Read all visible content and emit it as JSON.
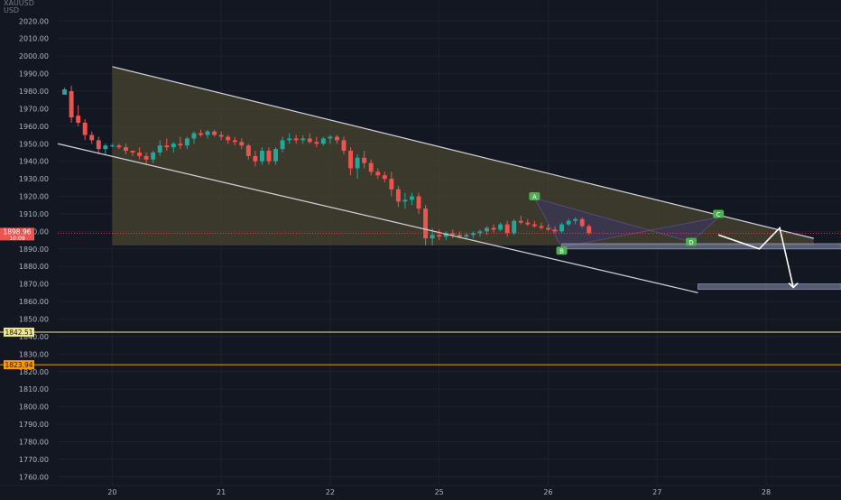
{
  "header": {
    "symbol_label": "XAUUSD",
    "currency": "USD"
  },
  "colors": {
    "background": "#131722",
    "grid": "#1e222d",
    "up": "#26a69a",
    "down": "#ef5350",
    "trendline": "#d1d4dc",
    "wedge_fill": "#4a4530",
    "triangle_fill": "#3a3458",
    "support_zone": "#8c93b3",
    "level_1842": "#f0e68c",
    "level_1823": "#ff9800",
    "axis_text": "#b2b5be"
  },
  "chart_data": {
    "type": "candlestick",
    "y_axis": {
      "ticks": [
        1760,
        1770,
        1780,
        1790,
        1800,
        1810,
        1820,
        1830,
        1840,
        1850,
        1860,
        1870,
        1880,
        1890,
        1900,
        1910,
        1920,
        1930,
        1940,
        1950,
        1960,
        1970,
        1980,
        1990,
        2000,
        2010,
        2020
      ],
      "range": [
        1755,
        2032
      ],
      "position": "left"
    },
    "x_axis": {
      "labels": [
        {
          "label": "20",
          "t": 7
        },
        {
          "label": "21",
          "t": 23
        },
        {
          "label": "22",
          "t": 39
        },
        {
          "label": "25",
          "t": 55
        },
        {
          "label": "26",
          "t": 71
        },
        {
          "label": "27",
          "t": 87
        },
        {
          "label": "28",
          "t": 103
        }
      ],
      "range": [
        -1,
        114
      ]
    },
    "candles": [
      [
        1978,
        1982,
        1978,
        1981
      ],
      [
        1980,
        1983,
        1962,
        1965
      ],
      [
        1966,
        1972,
        1960,
        1962
      ],
      [
        1962,
        1964,
        1952,
        1955
      ],
      [
        1955,
        1957,
        1950,
        1952
      ],
      [
        1952,
        1954,
        1944,
        1947
      ],
      [
        1947,
        1950,
        1944,
        1949
      ],
      [
        1949,
        1950,
        1948,
        1949
      ],
      [
        1949,
        1950,
        1947,
        1948
      ],
      [
        1948,
        1950,
        1944,
        1946
      ],
      [
        1946,
        1946,
        1943,
        1945
      ],
      [
        1945,
        1948,
        1941,
        1943
      ],
      [
        1943,
        1945,
        1938,
        1941
      ],
      [
        1941,
        1946,
        1939,
        1945
      ],
      [
        1945,
        1952,
        1943,
        1949
      ],
      [
        1949,
        1953,
        1946,
        1948
      ],
      [
        1948,
        1951,
        1945,
        1950
      ],
      [
        1950,
        1954,
        1947,
        1949
      ],
      [
        1949,
        1954,
        1947,
        1953
      ],
      [
        1953,
        1957,
        1950,
        1956
      ],
      [
        1956,
        1958,
        1954,
        1955
      ],
      [
        1955,
        1958,
        1953,
        1957
      ],
      [
        1957,
        1958,
        1954,
        1955
      ],
      [
        1955,
        1957,
        1952,
        1954
      ],
      [
        1954,
        1955,
        1950,
        1952
      ],
      [
        1952,
        1954,
        1949,
        1951
      ],
      [
        1951,
        1953,
        1947,
        1949
      ],
      [
        1949,
        1950,
        1941,
        1943
      ],
      [
        1943,
        1946,
        1937,
        1940
      ],
      [
        1940,
        1948,
        1938,
        1946
      ],
      [
        1946,
        1948,
        1938,
        1940
      ],
      [
        1940,
        1948,
        1938,
        1947
      ],
      [
        1947,
        1954,
        1945,
        1952
      ],
      [
        1952,
        1956,
        1950,
        1953
      ],
      [
        1953,
        1955,
        1950,
        1952
      ],
      [
        1952,
        1955,
        1950,
        1953
      ],
      [
        1953,
        1956,
        1950,
        1951
      ],
      [
        1951,
        1954,
        1948,
        1950
      ],
      [
        1950,
        1954,
        1949,
        1953
      ],
      [
        1953,
        1955,
        1950,
        1954
      ],
      [
        1954,
        1955,
        1950,
        1952
      ],
      [
        1952,
        1954,
        1944,
        1946
      ],
      [
        1946,
        1948,
        1932,
        1936
      ],
      [
        1936,
        1944,
        1930,
        1942
      ],
      [
        1942,
        1946,
        1936,
        1939
      ],
      [
        1939,
        1941,
        1932,
        1934
      ],
      [
        1934,
        1936,
        1930,
        1932
      ],
      [
        1932,
        1934,
        1928,
        1930
      ],
      [
        1930,
        1934,
        1920,
        1924
      ],
      [
        1924,
        1926,
        1914,
        1917
      ],
      [
        1917,
        1922,
        1913,
        1918
      ],
      [
        1918,
        1922,
        1915,
        1920
      ],
      [
        1920,
        1922,
        1910,
        1913
      ],
      [
        1913,
        1915,
        1892,
        1896
      ],
      [
        1896,
        1902,
        1892,
        1898
      ],
      [
        1898,
        1901,
        1895,
        1897
      ],
      [
        1897,
        1900,
        1895,
        1899
      ],
      [
        1899,
        1901,
        1896,
        1898
      ],
      [
        1898,
        1900,
        1896,
        1897
      ],
      [
        1897,
        1899,
        1896,
        1898
      ],
      [
        1898,
        1900,
        1896,
        1899
      ],
      [
        1899,
        1901,
        1897,
        1900
      ],
      [
        1900,
        1903,
        1898,
        1902
      ],
      [
        1902,
        1904,
        1899,
        1901
      ],
      [
        1901,
        1905,
        1900,
        1904
      ],
      [
        1904,
        1906,
        1897,
        1899
      ],
      [
        1899,
        1907,
        1898,
        1906
      ],
      [
        1906,
        1909,
        1904,
        1905
      ],
      [
        1905,
        1907,
        1903,
        1904
      ],
      [
        1904,
        1906,
        1902,
        1903
      ],
      [
        1903,
        1905,
        1901,
        1902
      ],
      [
        1902,
        1904,
        1900,
        1901
      ],
      [
        1901,
        1903,
        1899,
        1900
      ],
      [
        1900,
        1905,
        1899,
        1904
      ],
      [
        1904,
        1907,
        1903,
        1906
      ],
      [
        1906,
        1908,
        1904,
        1907
      ],
      [
        1907,
        1908,
        1902,
        1903
      ],
      [
        1903,
        1904,
        1898,
        1899
      ]
    ],
    "last_price_label": "1898.96",
    "last_price_value": 1898.96,
    "countdown_label": "10:09",
    "horizontal_levels": [
      {
        "label": "1842.51",
        "value": 1842.51,
        "color": "#f0e68c"
      },
      {
        "label": "1823.94",
        "value": 1823.94,
        "color": "#ff9800"
      }
    ],
    "wedge": {
      "upper": [
        [
          7,
          1994
        ],
        [
          110,
          1896
        ]
      ],
      "lower": [
        [
          -1,
          1950
        ],
        [
          93,
          1865
        ]
      ],
      "fill_polygon": [
        [
          7,
          1994
        ],
        [
          110,
          1896
        ],
        [
          110,
          1892
        ],
        [
          7,
          1892
        ]
      ]
    },
    "triangle_pattern": {
      "points": [
        [
          69,
          1919
        ],
        [
          73,
          1891
        ],
        [
          96,
          1908
        ],
        [
          92,
          1894
        ]
      ],
      "labels": [
        {
          "text": "A",
          "t": 69,
          "v": 1920
        },
        {
          "text": "B",
          "t": 73,
          "v": 1889
        },
        {
          "text": "C",
          "t": 96,
          "v": 1910
        },
        {
          "text": "D",
          "t": 92,
          "v": 1894
        }
      ]
    },
    "zones": [
      {
        "t": [
          73,
          114
        ],
        "v": [
          1890,
          1893
        ]
      },
      {
        "t": [
          93,
          114
        ],
        "v": [
          1867,
          1870
        ]
      }
    ],
    "projection_path": [
      [
        96,
        1898
      ],
      [
        102,
        1890
      ],
      [
        105,
        1902
      ],
      [
        107,
        1868
      ]
    ]
  }
}
